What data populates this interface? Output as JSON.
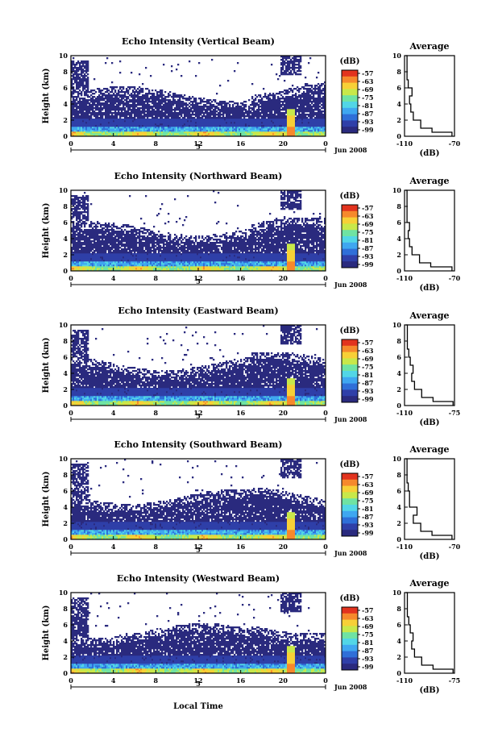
{
  "figure": {
    "x_axis_label": "Local Time",
    "date_label": "Jun 2008",
    "day_label": "5"
  },
  "colorbar": {
    "unit": "(dB)",
    "tick_labels": [
      "-57",
      "-63",
      "-69",
      "-75",
      "-81",
      "-87",
      "-93",
      "-99"
    ],
    "colors": [
      "#2a2a7e",
      "#2f3fa8",
      "#2f6fd8",
      "#3fa7f0",
      "#52d6e6",
      "#6fe3a3",
      "#c8e84a",
      "#f7d037",
      "#f6892c",
      "#e2331e"
    ]
  },
  "chart_data": [
    {
      "type": "heatmap",
      "title": "Echo Intensity (Vertical Beam)",
      "ylabel": "Height (km)",
      "x": [
        0,
        4,
        8,
        12,
        16,
        20,
        24
      ],
      "x_tick_labels": [
        "0",
        "4",
        "8",
        "12",
        "16",
        "20",
        "0"
      ],
      "ylim": [
        0,
        10
      ],
      "y_ticks": [
        0,
        2,
        4,
        6,
        8,
        10
      ],
      "colorbar_range_db": [
        -99,
        -57
      ],
      "profile": {
        "title": "Average",
        "xlabel": "(dB)",
        "xlim": [
          -110,
          -70
        ],
        "x_tick_labels": [
          "-110",
          "-70"
        ],
        "height_km": [
          0,
          0.5,
          1,
          2,
          3,
          4,
          5,
          6,
          7,
          8,
          9,
          10
        ],
        "db": [
          -72,
          -88,
          -97,
          -103,
          -105,
          -106,
          -104,
          -107,
          -108,
          -108,
          -108,
          -109
        ]
      }
    },
    {
      "type": "heatmap",
      "title": "Echo Intensity (Northward Beam)",
      "ylabel": "Height (km)",
      "x": [
        0,
        4,
        8,
        12,
        16,
        20,
        24
      ],
      "x_tick_labels": [
        "0",
        "4",
        "8",
        "12",
        "16",
        "20",
        "0"
      ],
      "ylim": [
        0,
        10
      ],
      "y_ticks": [
        0,
        2,
        4,
        6,
        8,
        10
      ],
      "colorbar_range_db": [
        -99,
        -57
      ],
      "profile": {
        "title": "Average",
        "xlabel": "(dB)",
        "xlim": [
          -110,
          -70
        ],
        "x_tick_labels": [
          "-110",
          "-70"
        ],
        "height_km": [
          0,
          0.5,
          1,
          2,
          3,
          4,
          5,
          6,
          7,
          8,
          9,
          10
        ],
        "db": [
          -72,
          -89,
          -98,
          -104,
          -106,
          -107,
          -106,
          -108,
          -108,
          -108,
          -108,
          -109
        ]
      }
    },
    {
      "type": "heatmap",
      "title": "Echo Intensity (Eastward Beam)",
      "ylabel": "Height (km)",
      "x": [
        0,
        4,
        8,
        12,
        16,
        20,
        24
      ],
      "x_tick_labels": [
        "0",
        "4",
        "8",
        "12",
        "16",
        "20",
        "0"
      ],
      "ylim": [
        0,
        10
      ],
      "y_ticks": [
        0,
        2,
        4,
        6,
        8,
        10
      ],
      "colorbar_range_db": [
        -99,
        -57
      ],
      "profile": {
        "title": "Average",
        "xlabel": "(dB)",
        "xlim": [
          -110,
          -75
        ],
        "x_tick_labels": [
          "-110",
          "-75"
        ],
        "height_km": [
          0,
          0.5,
          1,
          2,
          3,
          4,
          5,
          6,
          7,
          8,
          9,
          10
        ],
        "db": [
          -76,
          -90,
          -98,
          -103,
          -105,
          -104,
          -106,
          -107,
          -108,
          -108,
          -108,
          -109
        ]
      }
    },
    {
      "type": "heatmap",
      "title": "Echo Intensity (Southward Beam)",
      "ylabel": "Height (km)",
      "x": [
        0,
        4,
        8,
        12,
        16,
        20,
        24
      ],
      "x_tick_labels": [
        "0",
        "4",
        "8",
        "12",
        "16",
        "20",
        "0"
      ],
      "ylim": [
        0,
        10
      ],
      "y_ticks": [
        0,
        2,
        4,
        6,
        8,
        10
      ],
      "colorbar_range_db": [
        -99,
        -57
      ],
      "profile": {
        "title": "Average",
        "xlabel": "(dB)",
        "xlim": [
          -110,
          -70
        ],
        "x_tick_labels": [
          "-110",
          "-70"
        ],
        "height_km": [
          0,
          0.5,
          1,
          2,
          3,
          4,
          5,
          6,
          7,
          8,
          9,
          10
        ],
        "db": [
          -72,
          -88,
          -97,
          -103,
          -100,
          -106,
          -106,
          -107,
          -108,
          -108,
          -108,
          -109
        ]
      }
    },
    {
      "type": "heatmap",
      "title": "Echo Intensity (Westward Beam)",
      "ylabel": "Height (km)",
      "x": [
        0,
        4,
        8,
        12,
        16,
        20,
        24
      ],
      "x_tick_labels": [
        "0",
        "4",
        "8",
        "12",
        "16",
        "20",
        "0"
      ],
      "ylim": [
        0,
        10
      ],
      "y_ticks": [
        0,
        2,
        4,
        6,
        8,
        10
      ],
      "colorbar_range_db": [
        -99,
        -57
      ],
      "profile": {
        "title": "Average",
        "xlabel": "(dB)",
        "xlim": [
          -110,
          -75
        ],
        "x_tick_labels": [
          "-110",
          "-75"
        ],
        "height_km": [
          0,
          0.5,
          1,
          2,
          3,
          4,
          5,
          6,
          7,
          8,
          9,
          10
        ],
        "db": [
          -76,
          -90,
          -98,
          -103,
          -105,
          -104,
          -106,
          -107,
          -108,
          -108,
          -108,
          -109
        ]
      }
    }
  ]
}
